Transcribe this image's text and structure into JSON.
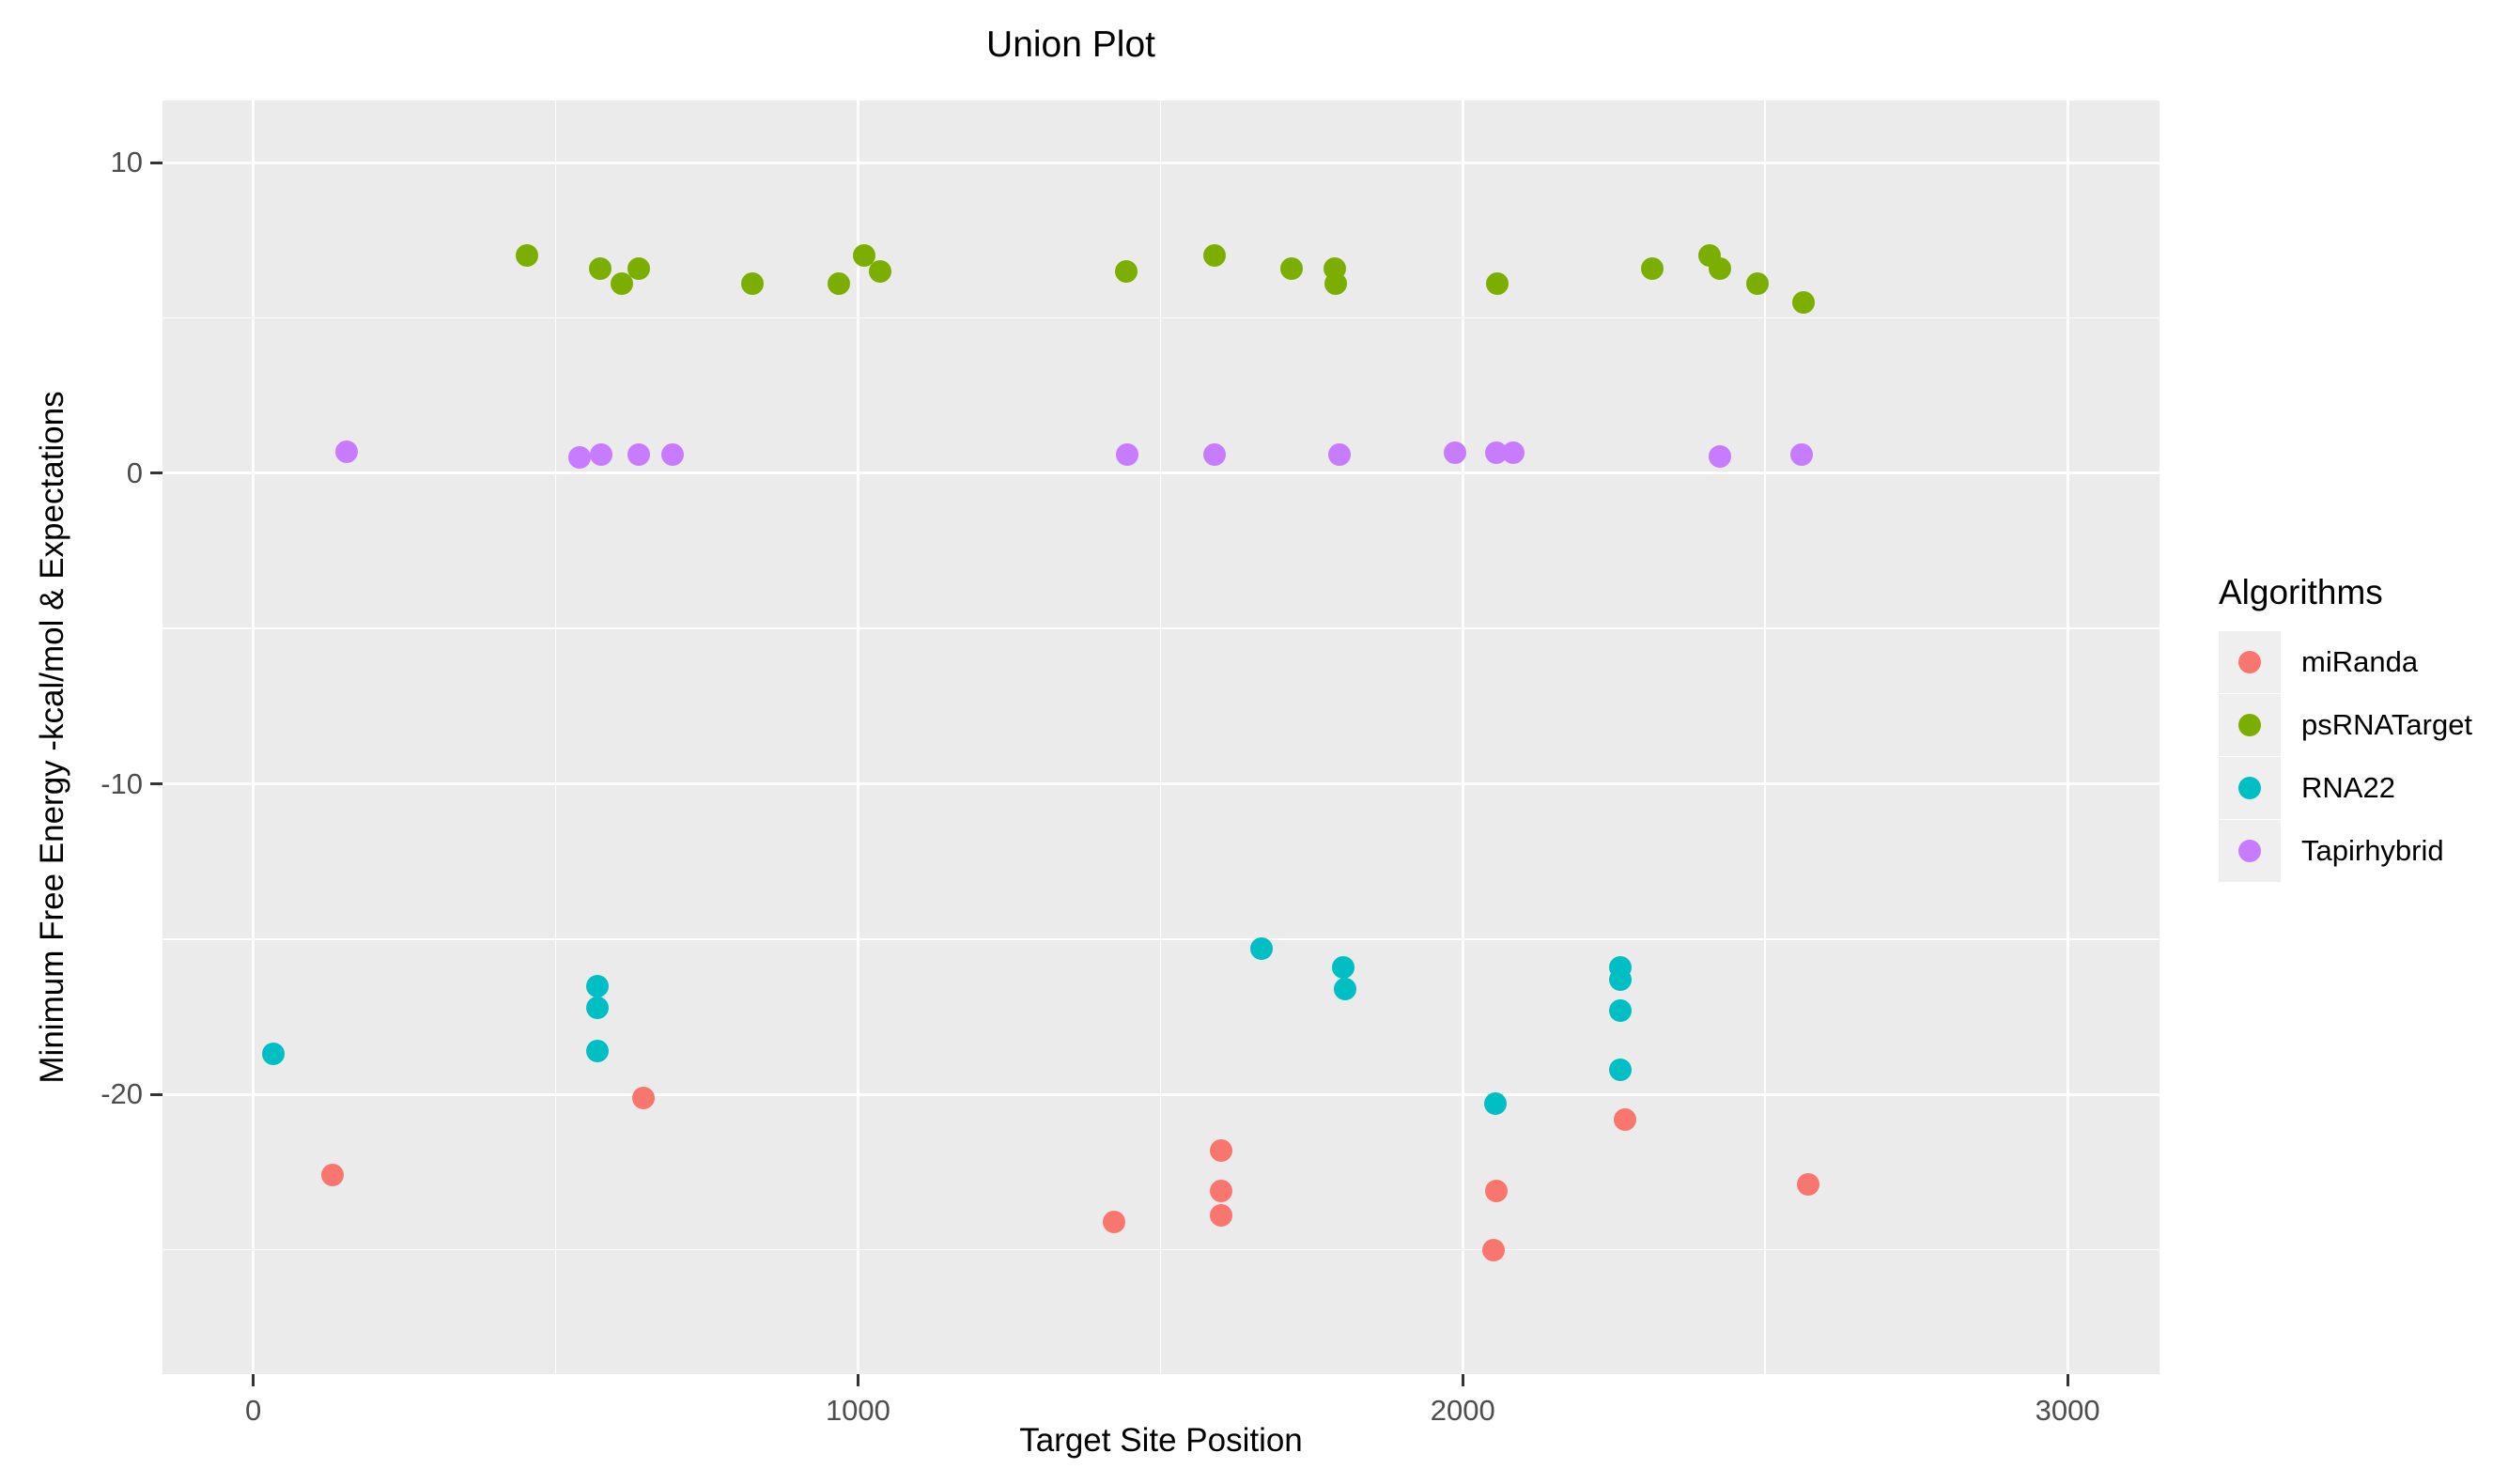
{
  "chart_data": {
    "type": "scatter",
    "title": "Union Plot",
    "xlabel": "Target Site Position",
    "ylabel": "Minimum Free Energy -kcal/mol & Expectations",
    "legend_title": "Algorithms",
    "legend_position": "right",
    "grid": true,
    "panel_bg": "#EBEBEB",
    "grid_color": "#FFFFFF",
    "tick_label_color": "#4D4D4D",
    "x_domain": [
      -150,
      3152
    ],
    "y_domain": [
      -29,
      12
    ],
    "x_ticks": [
      0,
      1000,
      2000,
      3000
    ],
    "y_ticks": [
      10,
      0,
      -10,
      -20
    ],
    "x_minor_ticks": [
      500,
      1500,
      2500
    ],
    "y_minor_ticks": [
      5,
      -5,
      -15,
      -25
    ],
    "series": [
      {
        "name": "miRanda",
        "color": "#F8766D",
        "points": [
          [
            131,
            -22.6
          ],
          [
            645,
            -20.1
          ],
          [
            1423,
            -24.1
          ],
          [
            1601,
            -21.8
          ],
          [
            1601,
            -23.1
          ],
          [
            1601,
            -23.9
          ],
          [
            2051,
            -25.0
          ],
          [
            2056,
            -23.1
          ],
          [
            2268,
            -20.8
          ],
          [
            2571,
            -22.9
          ]
        ]
      },
      {
        "name": "psRNATarget",
        "color": "#7CAE00",
        "points": [
          [
            452,
            7.0
          ],
          [
            574,
            6.6
          ],
          [
            609,
            6.1
          ],
          [
            638,
            6.6
          ],
          [
            826,
            6.1
          ],
          [
            969,
            6.1
          ],
          [
            1010,
            7.0
          ],
          [
            1037,
            6.5
          ],
          [
            1443,
            6.5
          ],
          [
            1590,
            7.0
          ],
          [
            1717,
            6.6
          ],
          [
            1788,
            6.6
          ],
          [
            1790,
            6.1
          ],
          [
            2057,
            6.1
          ],
          [
            2313,
            6.6
          ],
          [
            2408,
            7.0
          ],
          [
            2425,
            6.6
          ],
          [
            2487,
            6.1
          ],
          [
            2563,
            5.5
          ]
        ]
      },
      {
        "name": "RNA22",
        "color": "#00BFC4",
        "points": [
          [
            34,
            -18.7
          ],
          [
            569,
            -16.5
          ],
          [
            569,
            -17.2
          ],
          [
            569,
            -18.6
          ],
          [
            1667,
            -15.3
          ],
          [
            1802,
            -15.9
          ],
          [
            1805,
            -16.6
          ],
          [
            2054,
            -20.3
          ],
          [
            2261,
            -15.9
          ],
          [
            2261,
            -16.3
          ],
          [
            2261,
            -17.3
          ],
          [
            2261,
            -19.2
          ]
        ]
      },
      {
        "name": "Tapirhybrid",
        "color": "#C77CFF",
        "points": [
          [
            155,
            0.7
          ],
          [
            539,
            0.5
          ],
          [
            576,
            0.6
          ],
          [
            637,
            0.6
          ],
          [
            693,
            0.6
          ],
          [
            1445,
            0.6
          ],
          [
            1590,
            0.6
          ],
          [
            1796,
            0.6
          ],
          [
            1987,
            0.65
          ],
          [
            2055,
            0.65
          ],
          [
            2084,
            0.65
          ],
          [
            2425,
            0.55
          ],
          [
            2561,
            0.6
          ]
        ]
      }
    ]
  }
}
